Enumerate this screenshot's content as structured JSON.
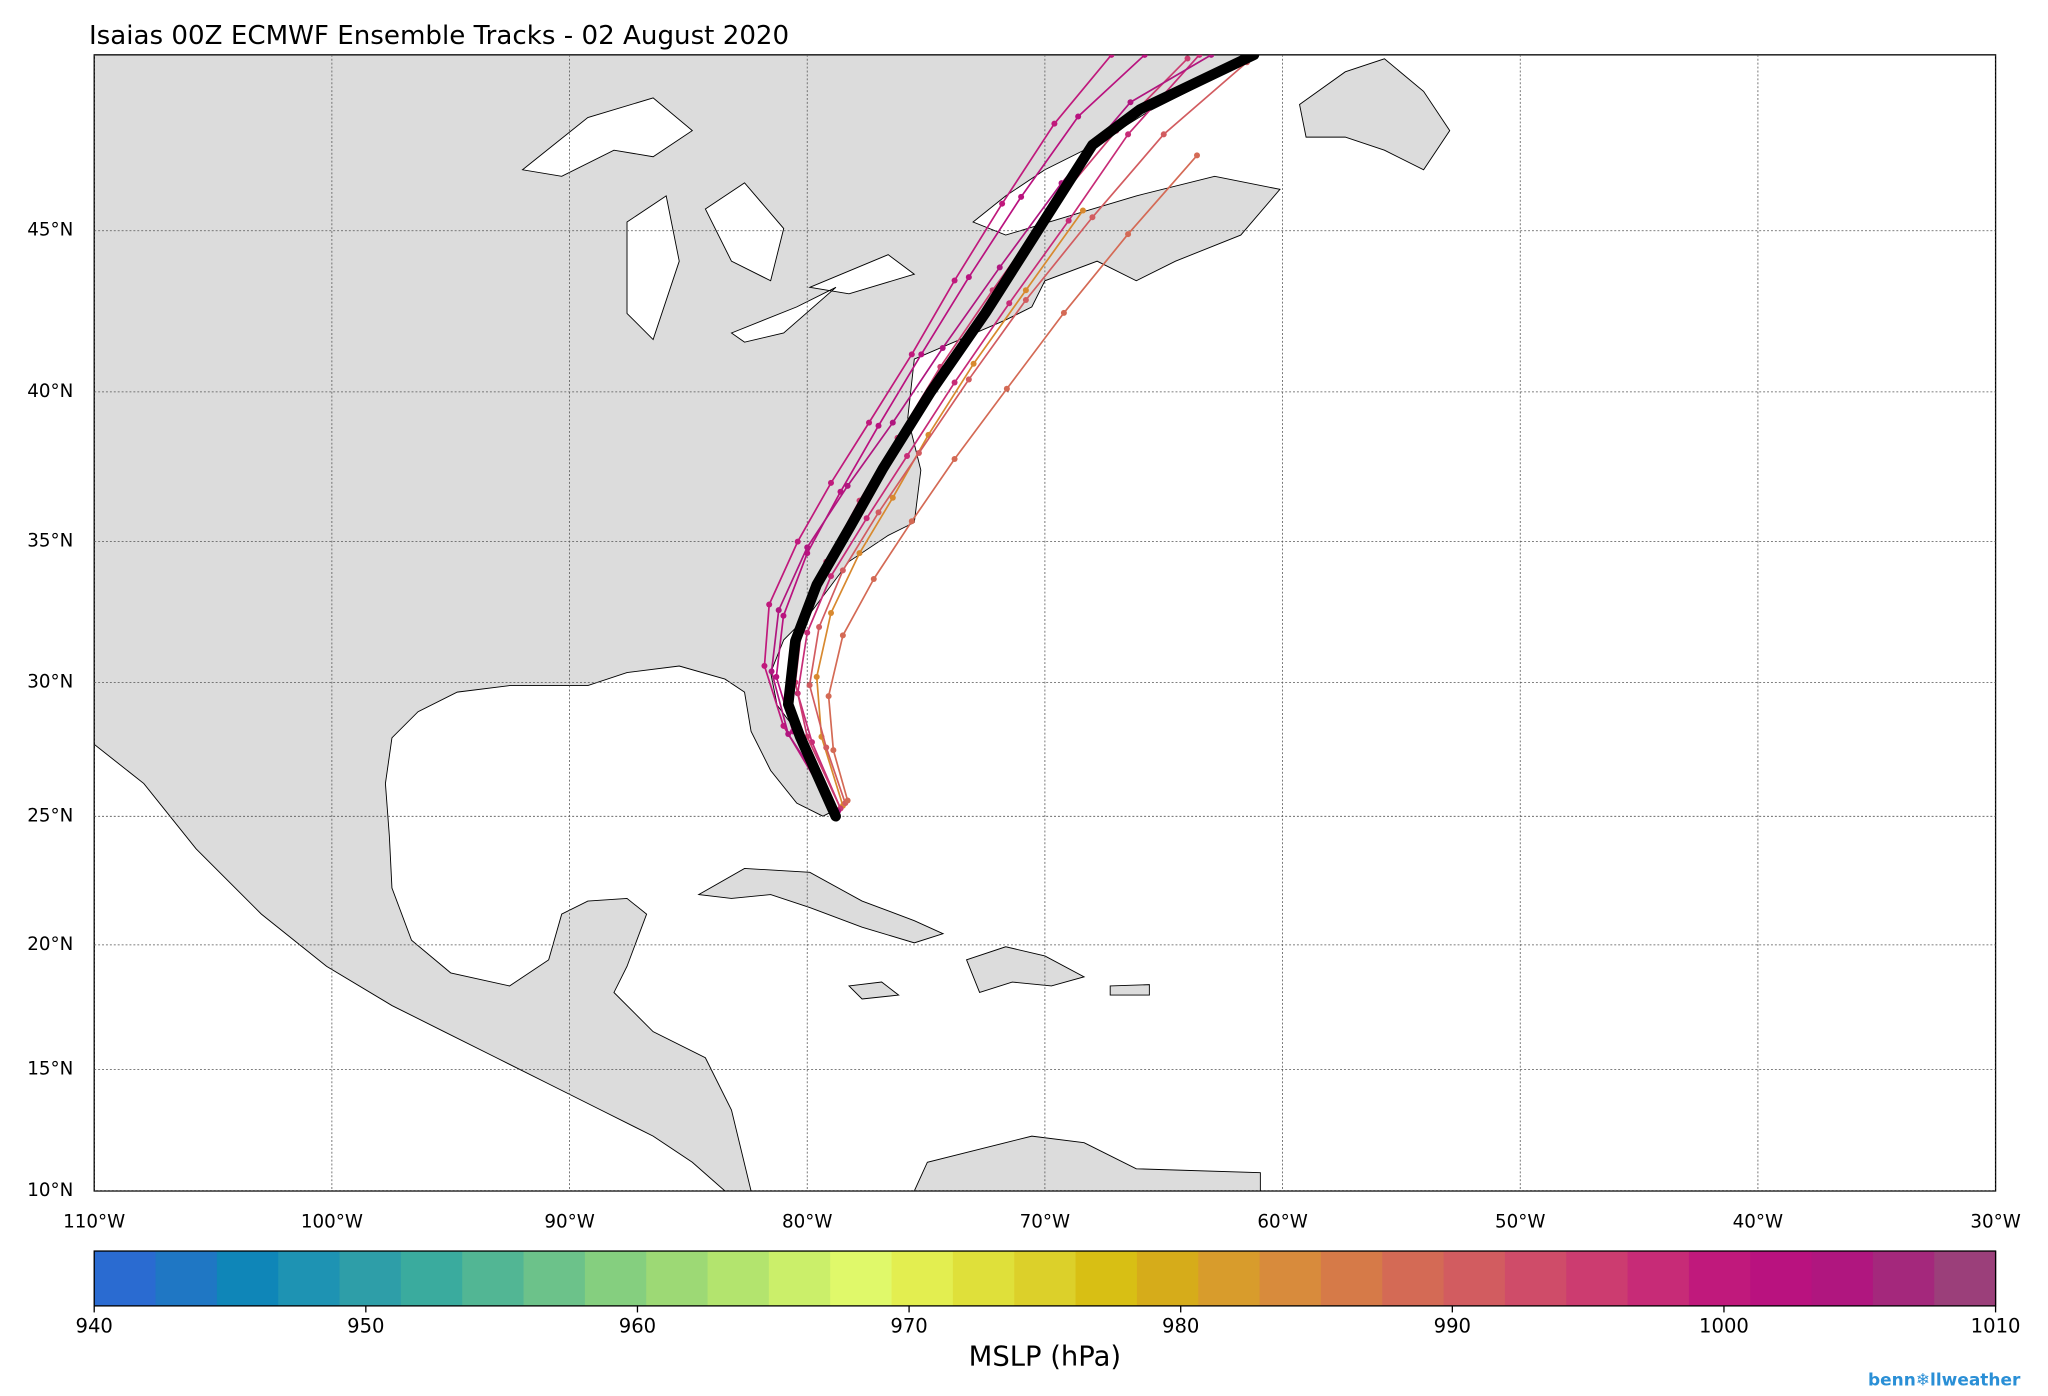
{
  "title": "Isaias 00Z ECMWF Ensemble Tracks - 02 August 2020",
  "map": {
    "lonlim": [
      -110,
      -30
    ],
    "latlim": [
      10,
      50
    ],
    "grid": true,
    "lonticks": [
      {
        "value": -110,
        "label": "110°W"
      },
      {
        "value": -100,
        "label": "100°W"
      },
      {
        "value": -90,
        "label": "90°W"
      },
      {
        "value": -80,
        "label": "80°W"
      },
      {
        "value": -70,
        "label": "70°W"
      },
      {
        "value": -60,
        "label": "60°W"
      },
      {
        "value": -50,
        "label": "50°W"
      },
      {
        "value": -40,
        "label": "40°W"
      },
      {
        "value": -30,
        "label": "30°W"
      }
    ],
    "latticks": [
      {
        "value": 10,
        "label": "10°N"
      },
      {
        "value": 15,
        "label": "15°N"
      },
      {
        "value": 20,
        "label": "20°N"
      },
      {
        "value": 25,
        "label": "25°N"
      },
      {
        "value": 30,
        "label": "30°N"
      },
      {
        "value": 35,
        "label": "35°N"
      },
      {
        "value": 40,
        "label": "40°N"
      },
      {
        "value": 45,
        "label": "45°N"
      }
    ],
    "members": [
      {
        "color": "#c72b77",
        "lon": [
          -78.6,
          -79.8,
          -80.4,
          -80.0,
          -79.0,
          -77.5,
          -75.8,
          -73.8,
          -71.5,
          -69.0,
          -66.5,
          -63.5
        ],
        "lat": [
          25.3,
          27.8,
          29.6,
          31.8,
          33.8,
          35.8,
          37.9,
          40.3,
          42.8,
          45.3,
          47.8,
          50.0
        ]
      },
      {
        "color": "#b9127f",
        "lon": [
          -78.7,
          -80.6,
          -81.3,
          -81.0,
          -80.0,
          -78.6,
          -77.0,
          -75.2,
          -73.2,
          -71.0,
          -68.6,
          -65.8
        ],
        "lat": [
          25.2,
          28.2,
          30.2,
          32.4,
          34.6,
          36.7,
          38.9,
          41.2,
          43.6,
          46.0,
          48.3,
          50.0
        ]
      },
      {
        "color": "#d8892f",
        "lon": [
          -78.5,
          -79.4,
          -79.6,
          -79.0,
          -77.8,
          -76.4,
          -74.9,
          -73.0,
          -70.8,
          -68.4
        ],
        "lat": [
          25.4,
          28.0,
          30.2,
          32.5,
          34.6,
          36.5,
          38.6,
          40.9,
          43.2,
          45.6
        ]
      },
      {
        "color": "#d25c60",
        "lon": [
          -78.4,
          -79.2,
          -79.9,
          -79.5,
          -78.5,
          -77.0,
          -75.3,
          -73.2,
          -70.8,
          -68.0,
          -65.0,
          -61.5
        ],
        "lat": [
          25.5,
          27.6,
          29.9,
          32.0,
          34.0,
          36.0,
          38.0,
          40.4,
          42.9,
          45.4,
          47.8,
          49.8
        ]
      },
      {
        "color": "#c0197c",
        "lon": [
          -78.8,
          -81.0,
          -81.8,
          -81.6,
          -80.4,
          -79.0,
          -77.4,
          -75.6,
          -73.8,
          -71.8,
          -69.6,
          -67.2
        ],
        "lat": [
          25.1,
          28.4,
          30.6,
          32.8,
          35.0,
          37.0,
          39.0,
          41.2,
          43.5,
          45.8,
          48.1,
          50.0
        ]
      },
      {
        "color": "#cc3c70",
        "lon": [
          -78.6,
          -80.0,
          -80.5,
          -80.2,
          -79.2,
          -77.8,
          -76.2,
          -74.4,
          -72.2,
          -69.8,
          -67.0,
          -64.0
        ],
        "lat": [
          25.3,
          28.0,
          30.0,
          32.2,
          34.3,
          36.4,
          38.5,
          40.8,
          43.2,
          45.6,
          47.9,
          49.9
        ]
      },
      {
        "color": "#d46a55",
        "lon": [
          -78.3,
          -78.9,
          -79.1,
          -78.5,
          -77.2,
          -75.6,
          -73.8,
          -71.6,
          -69.2,
          -66.5,
          -63.6
        ],
        "lat": [
          25.6,
          27.5,
          29.5,
          31.7,
          33.7,
          35.7,
          37.8,
          40.1,
          42.5,
          44.9,
          47.2
        ]
      },
      {
        "color": "#b0167f",
        "lon": [
          -78.7,
          -80.8,
          -81.5,
          -81.2,
          -80.0,
          -78.3,
          -76.4,
          -74.3,
          -71.9,
          -69.3,
          -66.4,
          -63.0
        ],
        "lat": [
          25.2,
          28.1,
          30.4,
          32.6,
          34.8,
          36.9,
          39.0,
          41.4,
          43.9,
          46.4,
          48.7,
          50.0
        ]
      }
    ],
    "mean_track": {
      "color": "#000000",
      "lon": [
        -78.8,
        -80.3,
        -80.8,
        -80.5,
        -79.6,
        -78.2,
        -76.8,
        -74.8,
        -72.5,
        -70.3,
        -68.0,
        -66.0,
        -61.2
      ],
      "lat": [
        25.0,
        28.0,
        29.2,
        31.5,
        33.5,
        35.5,
        37.5,
        40.0,
        42.5,
        45.0,
        47.5,
        48.5,
        50.0
      ]
    }
  },
  "colorbar": {
    "label": "MSLP (hPa)",
    "lim": [
      940,
      1010
    ],
    "ticks": [
      940,
      950,
      960,
      970,
      980,
      990,
      1000,
      1010
    ],
    "colors": [
      "#2a6bd1",
      "#1f77c4",
      "#0f86b8",
      "#1e93b3",
      "#2e9ea8",
      "#3aab9e",
      "#52b694",
      "#6cc28a",
      "#85cf7f",
      "#9dd975",
      "#b3e46e",
      "#cbef6a",
      "#e0f96a",
      "#e3ee50",
      "#dfe03a",
      "#dcd02a",
      "#d8bf14",
      "#d6ac1a",
      "#d89c2c",
      "#d88b3c",
      "#d67a48",
      "#d46a55",
      "#d25c60",
      "#cf4c69",
      "#cc3c70",
      "#c72b77",
      "#c0197c",
      "#b9127f",
      "#b0167f",
      "#a4287c",
      "#9b3f7a"
    ]
  },
  "credit": "benn❄llweather"
}
